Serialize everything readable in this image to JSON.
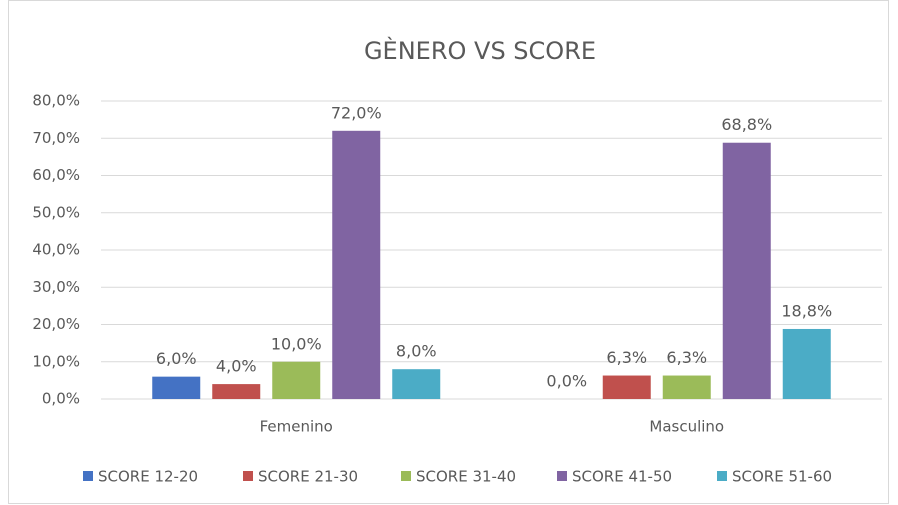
{
  "chart_data": {
    "type": "bar",
    "title": "GÈNERO VS SCORE",
    "categories": [
      "Femenino",
      "Masculino"
    ],
    "series": [
      {
        "name": "SCORE 12-20",
        "color": "#4472c4",
        "values": [
          6.0,
          0.0
        ],
        "value_labels": [
          "6,0%",
          "0,0%"
        ]
      },
      {
        "name": "SCORE 21-30",
        "color": "#c0504d",
        "values": [
          4.0,
          6.3
        ],
        "value_labels": [
          "4,0%",
          "6,3%"
        ]
      },
      {
        "name": "SCORE 31-40",
        "color": "#9bbb59",
        "values": [
          10.0,
          6.3
        ],
        "value_labels": [
          "10,0%",
          "6,3%"
        ]
      },
      {
        "name": "SCORE 41-50",
        "color": "#8064a2",
        "values": [
          72.0,
          68.8
        ],
        "value_labels": [
          "72,0%",
          "68,8%"
        ]
      },
      {
        "name": "SCORE 51-60",
        "color": "#4bacc6",
        "values": [
          8.0,
          18.8
        ],
        "value_labels": [
          "8,0%",
          "18,8%"
        ]
      }
    ],
    "ylim": [
      0,
      80
    ],
    "yticks": [
      {
        "value": 0,
        "label": "0,0%"
      },
      {
        "value": 10,
        "label": "10,0%"
      },
      {
        "value": 20,
        "label": "20,0%"
      },
      {
        "value": 30,
        "label": "30,0%"
      },
      {
        "value": 40,
        "label": "40,0%"
      },
      {
        "value": 50,
        "label": "50,0%"
      },
      {
        "value": 60,
        "label": "60,0%"
      },
      {
        "value": 70,
        "label": "70,0%"
      },
      {
        "value": 80,
        "label": "80,0%"
      }
    ],
    "grid": true,
    "legend": "bottom"
  }
}
